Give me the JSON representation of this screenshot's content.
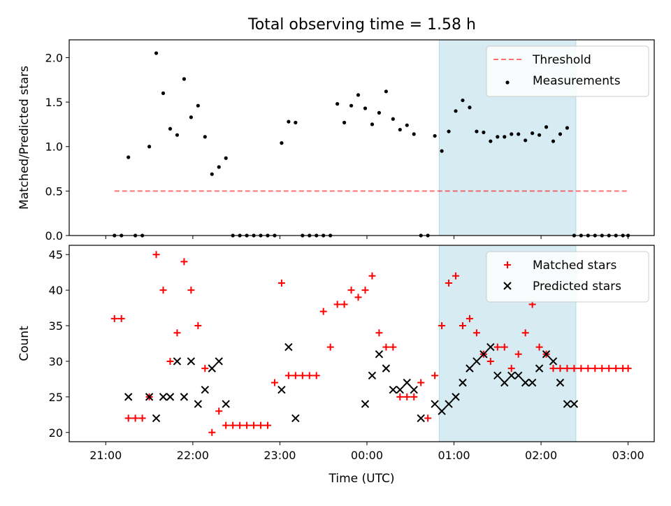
{
  "title": "Total observing time = 1.58 h",
  "colors": {
    "highlight": "#add8e6",
    "threshold": "#ff0000",
    "matched": "#ff0000",
    "predicted": "#000000",
    "measurement": "#000000"
  },
  "chart_data": [
    {
      "type": "scatter",
      "ylabel": "Matched/Predicted stars",
      "ylim": [
        0,
        2.2
      ],
      "yticks": [
        "0.0",
        "0.5",
        "1.0",
        "1.5",
        "2.0"
      ],
      "yticks_values": [
        0,
        0.5,
        1.0,
        1.5,
        2.0
      ],
      "xlim": [
        -0.42,
        6.3
      ],
      "legend_position": "top-right",
      "highlight_span": [
        3.83,
        5.4
      ],
      "threshold": {
        "name": "Threshold",
        "value": 0.5,
        "x_range": [
          0.1,
          6.0
        ],
        "style": "dashed"
      },
      "series": [
        {
          "name": "Measurements",
          "x": [
            0.1,
            0.18,
            0.26,
            0.34,
            0.42,
            0.5,
            0.58,
            0.66,
            0.74,
            0.82,
            0.9,
            0.98,
            1.06,
            1.14,
            1.22,
            1.3,
            1.38,
            1.46,
            1.54,
            1.62,
            1.7,
            1.78,
            1.86,
            1.94,
            2.02,
            2.1,
            2.18,
            2.26,
            2.34,
            2.42,
            2.5,
            2.58,
            2.66,
            2.74,
            2.82,
            2.9,
            2.98,
            3.06,
            3.14,
            3.22,
            3.3,
            3.38,
            3.46,
            3.54,
            3.62,
            3.7,
            3.78,
            3.86,
            3.94,
            4.02,
            4.1,
            4.18,
            4.26,
            4.34,
            4.42,
            4.5,
            4.58,
            4.66,
            4.74,
            4.82,
            4.9,
            4.98,
            5.06,
            5.14,
            5.22,
            5.3,
            5.38,
            5.46,
            5.54,
            5.62,
            5.7,
            5.78,
            5.86,
            5.94,
            6.0
          ],
          "y": [
            0,
            0,
            0.88,
            0,
            0,
            1.0,
            2.05,
            1.6,
            1.2,
            1.13,
            1.76,
            1.33,
            1.46,
            1.11,
            0.69,
            0.77,
            0.87,
            0,
            0,
            0,
            0,
            0,
            0,
            0,
            1.04,
            1.28,
            1.27,
            0,
            0,
            0,
            0,
            0,
            1.48,
            1.27,
            1.46,
            1.58,
            1.43,
            1.25,
            1.38,
            1.62,
            1.31,
            1.19,
            1.24,
            1.14,
            0,
            0,
            1.12,
            0.95,
            1.17,
            1.4,
            1.52,
            1.44,
            1.17,
            1.16,
            1.06,
            1.11,
            1.11,
            1.14,
            1.14,
            1.07,
            1.15,
            1.13,
            1.22,
            1.06,
            1.14,
            1.21,
            0,
            0,
            0,
            0,
            0,
            0,
            0,
            0,
            0
          ]
        }
      ]
    },
    {
      "type": "scatter",
      "ylabel": "Count",
      "xlabel": "Time (UTC)",
      "ylim": [
        18.7,
        46.3
      ],
      "yticks": [
        "20",
        "25",
        "30",
        "35",
        "40",
        "45"
      ],
      "yticks_values": [
        20,
        25,
        30,
        35,
        40,
        45
      ],
      "xlim": [
        -0.42,
        6.3
      ],
      "xticks": [
        "21:00",
        "22:00",
        "23:00",
        "00:00",
        "01:00",
        "02:00",
        "03:00"
      ],
      "xticks_values": [
        0,
        1,
        2,
        3,
        4,
        5,
        6
      ],
      "legend_position": "top-right",
      "highlight_span": [
        3.83,
        5.4
      ],
      "series": [
        {
          "name": "Matched stars",
          "marker": "plus",
          "x": [
            0.1,
            0.18,
            0.26,
            0.34,
            0.42,
            0.5,
            0.58,
            0.66,
            0.74,
            0.82,
            0.9,
            0.98,
            1.06,
            1.14,
            1.22,
            1.3,
            1.38,
            1.46,
            1.54,
            1.62,
            1.7,
            1.78,
            1.86,
            1.94,
            2.02,
            2.1,
            2.18,
            2.26,
            2.34,
            2.42,
            2.5,
            2.58,
            2.66,
            2.74,
            2.82,
            2.9,
            2.98,
            3.06,
            3.14,
            3.22,
            3.3,
            3.38,
            3.46,
            3.54,
            3.62,
            3.7,
            3.78,
            3.86,
            3.94,
            4.02,
            4.1,
            4.18,
            4.26,
            4.34,
            4.42,
            4.5,
            4.58,
            4.66,
            4.74,
            4.82,
            4.9,
            4.98,
            5.06,
            5.14,
            5.22,
            5.3,
            5.38,
            5.46,
            5.54,
            5.62,
            5.7,
            5.78,
            5.86,
            5.94,
            6.0
          ],
          "y": [
            36,
            36,
            22,
            22,
            22,
            25,
            45,
            40,
            30,
            34,
            44,
            40,
            35,
            29,
            20,
            23,
            21,
            21,
            21,
            21,
            21,
            21,
            21,
            27,
            41,
            28,
            28,
            28,
            28,
            28,
            37,
            32,
            38,
            38,
            40,
            39,
            40,
            42,
            34,
            32,
            32,
            25,
            25,
            25,
            27,
            22,
            28,
            35,
            41,
            42,
            35,
            36,
            34,
            31,
            30,
            32,
            32,
            29,
            31,
            34,
            38,
            32,
            31,
            29,
            29,
            29,
            29,
            29,
            29,
            29,
            29,
            29,
            29,
            29,
            29
          ]
        },
        {
          "name": "Predicted stars",
          "marker": "x",
          "x": [
            0.26,
            0.5,
            0.58,
            0.66,
            0.74,
            0.82,
            0.9,
            0.98,
            1.06,
            1.14,
            1.22,
            1.3,
            1.38,
            2.02,
            2.1,
            2.18,
            2.98,
            3.06,
            3.14,
            3.22,
            3.3,
            3.38,
            3.46,
            3.54,
            3.62,
            3.78,
            3.86,
            3.94,
            4.02,
            4.1,
            4.18,
            4.26,
            4.34,
            4.42,
            4.5,
            4.58,
            4.66,
            4.74,
            4.82,
            4.9,
            4.98,
            5.06,
            5.14,
            5.22,
            5.3,
            5.38
          ],
          "y": [
            25,
            25,
            22,
            25,
            25,
            30,
            25,
            30,
            24,
            26,
            29,
            30,
            24,
            26,
            32,
            22,
            24,
            28,
            31,
            29,
            26,
            26,
            27,
            26,
            22,
            24,
            23,
            24,
            25,
            27,
            29,
            30,
            31,
            32,
            28,
            27,
            28,
            28,
            27,
            27,
            29,
            31,
            30,
            27,
            24,
            24
          ]
        }
      ]
    }
  ]
}
